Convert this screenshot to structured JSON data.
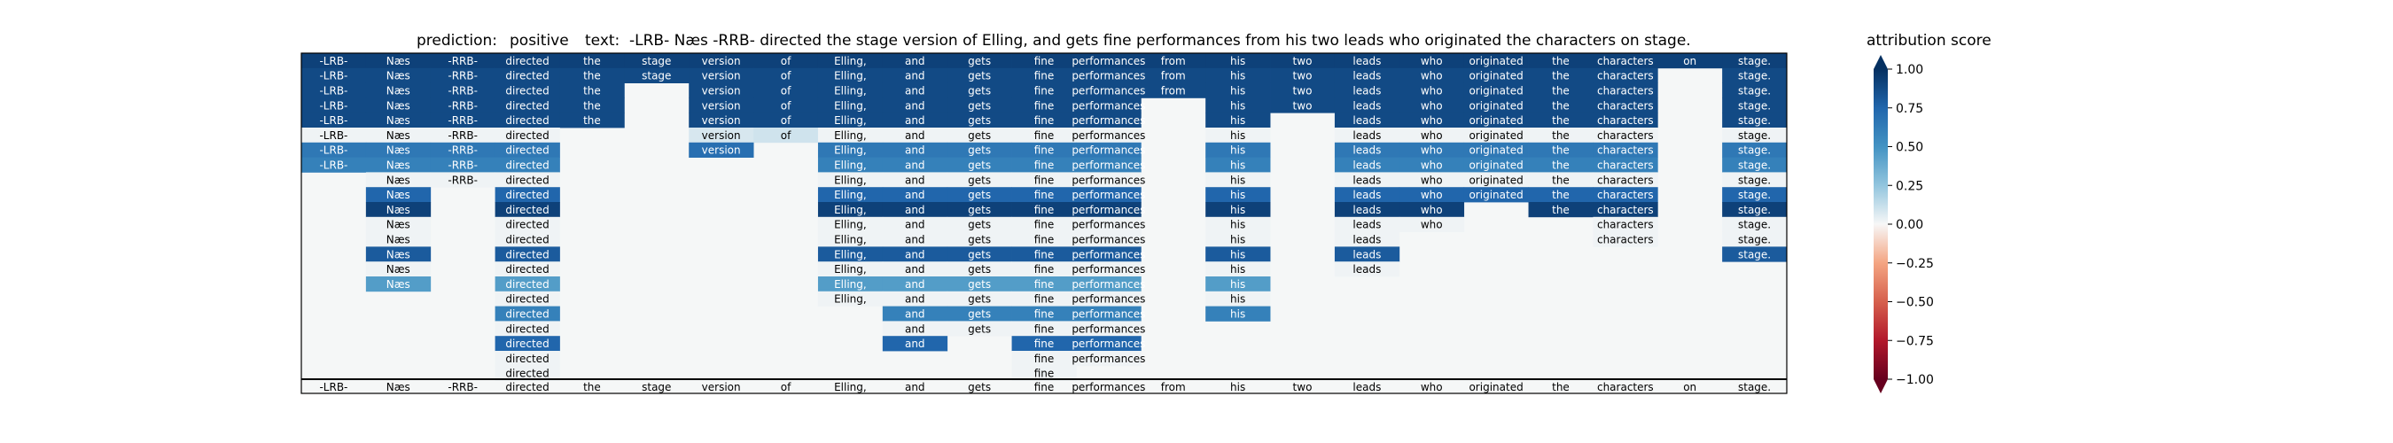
{
  "chart_data": {
    "type": "heatmap",
    "title": {
      "prediction_label": "prediction:",
      "prediction_value": "positive",
      "text_label": "text:",
      "text_value": "-LRB- Næs -RRB- directed the stage version of Elling, and gets fine performances from his two leads who originated the characters on stage."
    },
    "tokens": [
      "-LRB-",
      "Næs",
      "-RRB-",
      "directed",
      "the",
      "stage",
      "version",
      "of",
      "Elling,",
      "and",
      "gets",
      "fine",
      "performances",
      "from",
      "his",
      "two",
      "leads",
      "who",
      "originated",
      "the",
      "characters",
      "on",
      "stage."
    ],
    "rows": [
      [
        0.92,
        0.92,
        0.92,
        0.92,
        0.92,
        0.92,
        0.92,
        0.92,
        0.92,
        0.92,
        0.92,
        0.92,
        0.92,
        0.92,
        0.92,
        0.92,
        0.92,
        0.92,
        0.92,
        0.92,
        0.92,
        0.92,
        0.92
      ],
      [
        0.88,
        0.88,
        0.88,
        0.88,
        0.88,
        0.88,
        0.88,
        0.88,
        0.88,
        0.88,
        0.88,
        0.88,
        0.88,
        0.88,
        0.88,
        0.88,
        0.88,
        0.88,
        0.88,
        0.88,
        0.88,
        null,
        0.88
      ],
      [
        0.88,
        0.88,
        0.88,
        0.88,
        0.88,
        null,
        0.88,
        0.88,
        0.88,
        0.88,
        0.88,
        0.88,
        0.88,
        0.88,
        0.88,
        0.88,
        0.88,
        0.88,
        0.88,
        0.88,
        0.88,
        null,
        0.88
      ],
      [
        0.88,
        0.88,
        0.88,
        0.88,
        0.88,
        null,
        0.88,
        0.88,
        0.88,
        0.88,
        0.88,
        0.88,
        0.88,
        null,
        0.88,
        0.88,
        0.88,
        0.88,
        0.88,
        0.88,
        0.88,
        null,
        0.88
      ],
      [
        0.88,
        0.88,
        0.88,
        0.88,
        0.88,
        null,
        0.88,
        0.88,
        0.88,
        0.88,
        0.88,
        0.88,
        0.88,
        null,
        0.88,
        null,
        0.88,
        0.88,
        0.88,
        0.88,
        0.88,
        null,
        0.88
      ],
      [
        0.02,
        0.02,
        0.02,
        0.02,
        null,
        null,
        0.08,
        0.1,
        0.02,
        0.02,
        0.02,
        0.02,
        0.02,
        null,
        0.02,
        null,
        0.02,
        0.02,
        0.02,
        0.02,
        0.02,
        null,
        0.02
      ],
      [
        0.65,
        0.65,
        0.65,
        0.65,
        null,
        null,
        0.7,
        null,
        0.65,
        0.65,
        0.65,
        0.65,
        0.65,
        null,
        0.65,
        null,
        0.65,
        0.65,
        0.65,
        0.65,
        0.65,
        null,
        0.65
      ],
      [
        0.6,
        0.6,
        0.6,
        0.6,
        null,
        null,
        null,
        null,
        0.6,
        0.6,
        0.6,
        0.6,
        0.6,
        null,
        0.6,
        null,
        0.6,
        0.6,
        0.6,
        0.6,
        0.6,
        null,
        0.6
      ],
      [
        null,
        0.02,
        0.02,
        0.02,
        null,
        null,
        null,
        null,
        0.02,
        0.02,
        0.02,
        0.02,
        0.02,
        null,
        0.02,
        null,
        0.02,
        0.02,
        0.02,
        0.02,
        0.02,
        null,
        0.02
      ],
      [
        null,
        0.75,
        null,
        0.75,
        null,
        null,
        null,
        null,
        0.75,
        0.75,
        0.75,
        0.75,
        0.75,
        null,
        0.75,
        null,
        0.75,
        0.75,
        0.75,
        0.75,
        0.75,
        null,
        0.75
      ],
      [
        null,
        0.92,
        null,
        0.92,
        null,
        null,
        null,
        null,
        0.92,
        0.92,
        0.92,
        0.92,
        0.92,
        null,
        0.92,
        null,
        0.92,
        0.92,
        null,
        0.92,
        0.92,
        null,
        0.92
      ],
      [
        null,
        0.02,
        null,
        0.02,
        null,
        null,
        null,
        null,
        0.02,
        0.02,
        0.02,
        0.02,
        0.02,
        null,
        0.02,
        null,
        0.02,
        0.02,
        null,
        null,
        0.02,
        null,
        0.02
      ],
      [
        null,
        0.02,
        null,
        0.02,
        null,
        null,
        null,
        null,
        0.02,
        0.02,
        0.02,
        0.02,
        0.02,
        null,
        0.02,
        null,
        0.02,
        null,
        null,
        null,
        0.02,
        null,
        0.02
      ],
      [
        null,
        0.8,
        null,
        0.8,
        null,
        null,
        null,
        null,
        0.8,
        0.8,
        0.8,
        0.8,
        0.8,
        null,
        0.8,
        null,
        0.8,
        null,
        null,
        null,
        null,
        null,
        0.8
      ],
      [
        null,
        0.02,
        null,
        0.02,
        null,
        null,
        null,
        null,
        0.02,
        0.02,
        0.02,
        0.02,
        0.02,
        null,
        0.02,
        null,
        0.02,
        null,
        null,
        null,
        null,
        null,
        null
      ],
      [
        null,
        0.45,
        null,
        0.45,
        null,
        null,
        null,
        null,
        0.45,
        0.45,
        0.45,
        0.45,
        0.45,
        null,
        0.45,
        null,
        null,
        null,
        null,
        null,
        null,
        null,
        null
      ],
      [
        null,
        null,
        null,
        0.02,
        null,
        null,
        null,
        null,
        0.02,
        0.02,
        0.02,
        0.02,
        0.02,
        null,
        0.02,
        null,
        null,
        null,
        null,
        null,
        null,
        null,
        null
      ],
      [
        null,
        null,
        null,
        0.6,
        null,
        null,
        null,
        null,
        null,
        0.6,
        0.6,
        0.6,
        0.6,
        null,
        0.6,
        null,
        null,
        null,
        null,
        null,
        null,
        null,
        null
      ],
      [
        null,
        null,
        null,
        0.02,
        null,
        null,
        null,
        null,
        null,
        0.02,
        0.02,
        0.02,
        0.02,
        null,
        null,
        null,
        null,
        null,
        null,
        null,
        null,
        null,
        null
      ],
      [
        null,
        null,
        null,
        0.75,
        null,
        null,
        null,
        null,
        null,
        0.75,
        null,
        0.75,
        0.75,
        null,
        null,
        null,
        null,
        null,
        null,
        null,
        null,
        null,
        null
      ],
      [
        null,
        null,
        null,
        0.02,
        null,
        null,
        null,
        null,
        null,
        null,
        null,
        0.02,
        0.02,
        null,
        null,
        null,
        null,
        null,
        null,
        null,
        null,
        null,
        null
      ],
      [
        null,
        null,
        null,
        0.02,
        null,
        null,
        null,
        null,
        null,
        null,
        null,
        0.02,
        null,
        null,
        null,
        null,
        null,
        null,
        null,
        null,
        null,
        null,
        null
      ]
    ],
    "colorbar": {
      "label": "attribution score",
      "ticks": [
        "1.00",
        "0.75",
        "0.50",
        "0.25",
        "0.00",
        "−0.25",
        "−0.50",
        "−0.75",
        "−1.00"
      ],
      "range": [
        -1.0,
        1.0
      ],
      "colormap": "RdBu"
    },
    "colors": {
      "background": "#f5f7f7",
      "positive_max": "#053061",
      "negative_max": "#67001f",
      "neutral": "#f7f7f7"
    }
  }
}
